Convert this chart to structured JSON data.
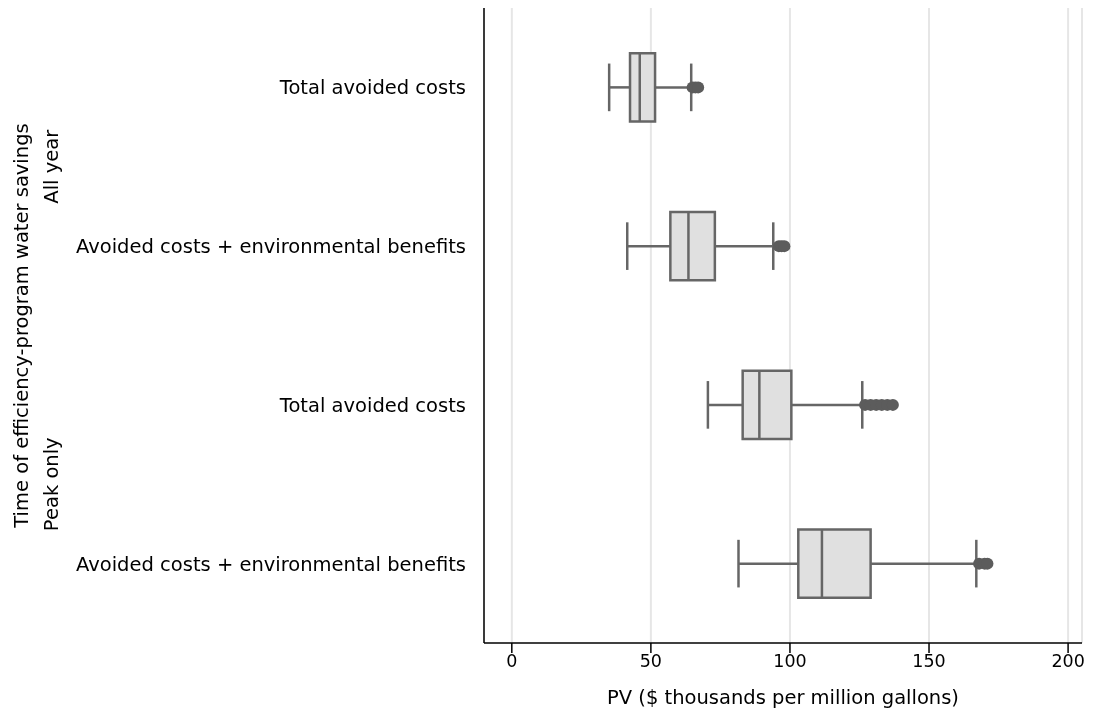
{
  "chart_data": {
    "type": "box",
    "orientation": "horizontal",
    "xlabel": "PV ($ thousands per million gallons)",
    "ylabel": "Time of efficiency-program water savings",
    "annotations": [
      "All year",
      "Peak only"
    ],
    "categories": [
      "Total avoided costs",
      "Avoided costs + environmental benefits",
      "Total avoided costs",
      "Avoided costs + environmental benefits"
    ],
    "color": "#e0e0e0",
    "boxes": [
      {
        "low": 35,
        "q1": 42.5,
        "median": 46,
        "q3": 51.5,
        "high": 64.5,
        "outliers": [
          65,
          66,
          67
        ]
      },
      {
        "low": 41.5,
        "q1": 57,
        "median": 63.5,
        "q3": 73,
        "high": 94,
        "outliers": [
          96,
          97,
          98
        ]
      },
      {
        "low": 70.5,
        "q1": 83,
        "median": 89,
        "q3": 100.5,
        "high": 126,
        "outliers": [
          127,
          129,
          131,
          133,
          135,
          137
        ]
      },
      {
        "low": 81.5,
        "q1": 103,
        "median": 111.5,
        "q3": 129,
        "high": 167,
        "outliers": [
          168,
          170,
          171
        ]
      }
    ],
    "xlim": [
      -10,
      205
    ],
    "xticks": [
      0,
      50,
      100,
      150,
      200
    ],
    "grid": "x"
  }
}
